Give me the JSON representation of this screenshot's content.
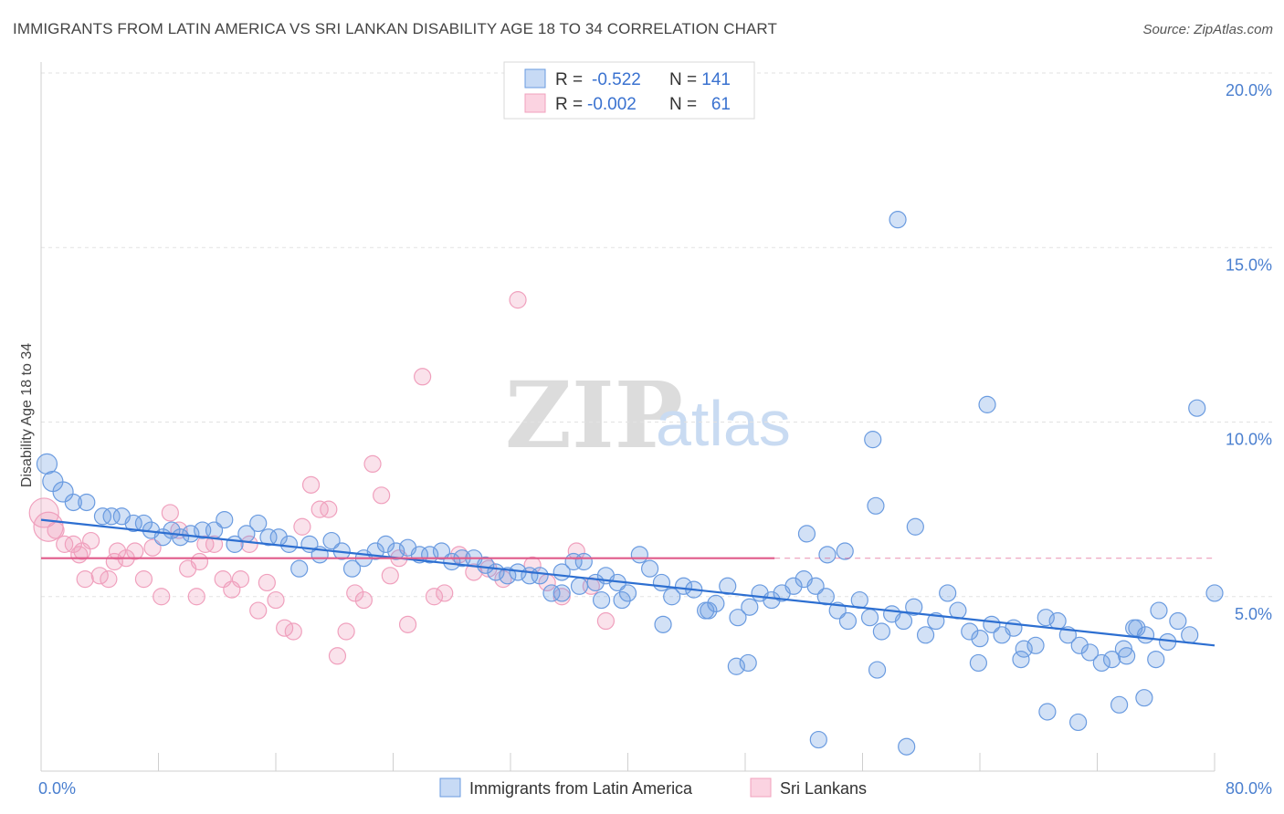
{
  "title": "IMMIGRANTS FROM LATIN AMERICA VS SRI LANKAN DISABILITY AGE 18 TO 34 CORRELATION CHART",
  "source": "Source: ZipAtlas.com",
  "watermark": {
    "zip": "ZIP",
    "atlas": "atlas"
  },
  "colors": {
    "blue": "#6a9be0",
    "blue_line": "#2d6fd1",
    "pink": "#f0a0bd",
    "pink_line": "#e05a8a"
  },
  "legend": {
    "r_label": "R =",
    "n_label": "N =",
    "blue": {
      "r": "-0.522",
      "n": "141"
    },
    "pink": {
      "r": "-0.002",
      "n": "61"
    }
  },
  "bottom_legend": {
    "blue": "Immigrants from Latin America",
    "pink": "Sri Lankans"
  },
  "chart_data": {
    "type": "scatter",
    "title": "IMMIGRANTS FROM LATIN AMERICA VS SRI LANKAN DISABILITY AGE 18 TO 34 CORRELATION CHART",
    "xlabel": "",
    "ylabel": "Disability Age 18 to 34",
    "xlim": [
      0,
      80
    ],
    "ylim": [
      0,
      20
    ],
    "y_ticks": [
      {
        "v": 5,
        "label": "5.0%"
      },
      {
        "v": 10,
        "label": "10.0%"
      },
      {
        "v": 15,
        "label": "15.0%"
      },
      {
        "v": 20,
        "label": "20.0%"
      }
    ],
    "x_ticks": [
      {
        "v": 0,
        "label": "0.0%"
      },
      {
        "v": 80,
        "label": "80.0%"
      }
    ],
    "series": [
      {
        "name": "Immigrants from Latin America",
        "color": "#6a9be0",
        "trend": {
          "x": [
            0,
            80
          ],
          "y": [
            7.2,
            3.6
          ]
        },
        "points": [
          [
            0.4,
            8.8
          ],
          [
            0.8,
            8.3
          ],
          [
            1.5,
            8.0
          ],
          [
            2.2,
            7.7
          ],
          [
            3.1,
            7.7
          ],
          [
            4.2,
            7.3
          ],
          [
            4.8,
            7.3
          ],
          [
            5.5,
            7.3
          ],
          [
            6.3,
            7.1
          ],
          [
            7.0,
            7.1
          ],
          [
            7.5,
            6.9
          ],
          [
            8.3,
            6.7
          ],
          [
            8.9,
            6.9
          ],
          [
            9.5,
            6.7
          ],
          [
            10.2,
            6.8
          ],
          [
            11.0,
            6.9
          ],
          [
            11.8,
            6.9
          ],
          [
            12.5,
            7.2
          ],
          [
            13.2,
            6.5
          ],
          [
            14.0,
            6.8
          ],
          [
            14.8,
            7.1
          ],
          [
            15.5,
            6.7
          ],
          [
            16.2,
            6.7
          ],
          [
            16.9,
            6.5
          ],
          [
            17.6,
            5.8
          ],
          [
            18.3,
            6.5
          ],
          [
            19.0,
            6.2
          ],
          [
            19.8,
            6.6
          ],
          [
            20.5,
            6.3
          ],
          [
            21.2,
            5.8
          ],
          [
            22.0,
            6.1
          ],
          [
            22.8,
            6.3
          ],
          [
            23.5,
            6.5
          ],
          [
            24.2,
            6.3
          ],
          [
            25.0,
            6.4
          ],
          [
            25.8,
            6.2
          ],
          [
            26.5,
            6.2
          ],
          [
            27.3,
            6.3
          ],
          [
            28.0,
            6.0
          ],
          [
            28.7,
            6.1
          ],
          [
            29.5,
            6.1
          ],
          [
            30.3,
            5.9
          ],
          [
            31.0,
            5.7
          ],
          [
            31.8,
            5.6
          ],
          [
            32.5,
            5.7
          ],
          [
            33.3,
            5.6
          ],
          [
            34.0,
            5.6
          ],
          [
            34.8,
            5.1
          ],
          [
            35.5,
            5.7
          ],
          [
            36.3,
            6.0
          ],
          [
            37.0,
            6.0
          ],
          [
            37.8,
            5.4
          ],
          [
            38.5,
            5.6
          ],
          [
            39.3,
            5.4
          ],
          [
            40.0,
            5.1
          ],
          [
            40.8,
            6.2
          ],
          [
            41.5,
            5.8
          ],
          [
            42.3,
            5.4
          ],
          [
            43.0,
            5.0
          ],
          [
            43.8,
            5.3
          ],
          [
            44.5,
            5.2
          ],
          [
            45.3,
            4.6
          ],
          [
            46.0,
            4.8
          ],
          [
            46.8,
            5.3
          ],
          [
            47.5,
            4.4
          ],
          [
            48.3,
            4.7
          ],
          [
            49.0,
            5.1
          ],
          [
            49.8,
            4.9
          ],
          [
            50.5,
            5.1
          ],
          [
            51.3,
            5.3
          ],
          [
            52.0,
            5.5
          ],
          [
            52.8,
            5.3
          ],
          [
            53.5,
            5.0
          ],
          [
            54.3,
            4.6
          ],
          [
            55.0,
            4.3
          ],
          [
            55.8,
            4.9
          ],
          [
            56.5,
            4.4
          ],
          [
            57.3,
            4.0
          ],
          [
            58.0,
            4.5
          ],
          [
            58.8,
            4.3
          ],
          [
            59.5,
            4.7
          ],
          [
            60.3,
            3.9
          ],
          [
            61.0,
            4.3
          ],
          [
            61.8,
            5.1
          ],
          [
            62.5,
            4.6
          ],
          [
            63.3,
            4.0
          ],
          [
            64.0,
            3.8
          ],
          [
            64.8,
            4.2
          ],
          [
            65.5,
            3.9
          ],
          [
            66.3,
            4.1
          ],
          [
            67.0,
            3.5
          ],
          [
            67.8,
            3.6
          ],
          [
            68.5,
            4.4
          ],
          [
            69.3,
            4.3
          ],
          [
            70.0,
            3.9
          ],
          [
            70.8,
            3.6
          ],
          [
            71.5,
            3.4
          ],
          [
            72.3,
            3.1
          ],
          [
            73.0,
            3.2
          ],
          [
            73.8,
            3.5
          ],
          [
            74.5,
            4.1
          ],
          [
            75.3,
            3.9
          ],
          [
            76.0,
            3.2
          ],
          [
            76.8,
            3.7
          ],
          [
            77.5,
            4.3
          ],
          [
            78.3,
            3.9
          ],
          [
            47.4,
            3.0
          ],
          [
            48.2,
            3.1
          ],
          [
            52.2,
            6.8
          ],
          [
            53.6,
            6.2
          ],
          [
            54.8,
            6.3
          ],
          [
            56.7,
            9.5
          ],
          [
            56.9,
            7.6
          ],
          [
            58.4,
            15.8
          ],
          [
            59.6,
            7.0
          ],
          [
            64.5,
            10.5
          ],
          [
            63.9,
            3.1
          ],
          [
            66.8,
            3.2
          ],
          [
            68.6,
            1.7
          ],
          [
            70.7,
            1.4
          ],
          [
            73.5,
            1.9
          ],
          [
            74.0,
            3.3
          ],
          [
            74.7,
            4.1
          ],
          [
            75.2,
            2.1
          ],
          [
            76.2,
            4.6
          ],
          [
            78.8,
            10.4
          ],
          [
            80.0,
            5.1
          ],
          [
            59.0,
            0.7
          ],
          [
            57.0,
            2.9
          ],
          [
            53.0,
            0.9
          ],
          [
            35.5,
            5.1
          ],
          [
            36.7,
            5.3
          ],
          [
            38.2,
            4.9
          ],
          [
            39.6,
            4.9
          ],
          [
            42.4,
            4.2
          ],
          [
            45.5,
            4.6
          ]
        ]
      },
      {
        "name": "Sri Lankans",
        "color": "#f0a0bd",
        "trend": {
          "x": [
            0,
            50
          ],
          "y": [
            6.1,
            6.1
          ]
        },
        "points": [
          [
            0.2,
            7.4
          ],
          [
            0.5,
            7.0
          ],
          [
            1.0,
            6.9
          ],
          [
            1.6,
            6.5
          ],
          [
            2.2,
            6.5
          ],
          [
            2.8,
            6.3
          ],
          [
            3.4,
            6.6
          ],
          [
            4.0,
            5.6
          ],
          [
            4.6,
            5.5
          ],
          [
            5.2,
            6.3
          ],
          [
            5.8,
            6.1
          ],
          [
            6.4,
            6.3
          ],
          [
            7.0,
            5.5
          ],
          [
            7.6,
            6.4
          ],
          [
            8.2,
            5.0
          ],
          [
            8.8,
            7.4
          ],
          [
            9.4,
            6.9
          ],
          [
            10.0,
            5.8
          ],
          [
            10.6,
            5.0
          ],
          [
            11.2,
            6.5
          ],
          [
            11.8,
            6.5
          ],
          [
            12.4,
            5.5
          ],
          [
            13.0,
            5.2
          ],
          [
            13.6,
            5.5
          ],
          [
            14.2,
            6.5
          ],
          [
            14.8,
            4.6
          ],
          [
            15.4,
            5.4
          ],
          [
            16.0,
            4.9
          ],
          [
            16.6,
            4.1
          ],
          [
            17.2,
            4.0
          ],
          [
            17.8,
            7.0
          ],
          [
            18.4,
            8.2
          ],
          [
            19.0,
            7.5
          ],
          [
            19.6,
            7.5
          ],
          [
            20.2,
            3.3
          ],
          [
            20.8,
            4.0
          ],
          [
            21.4,
            5.1
          ],
          [
            22.0,
            4.9
          ],
          [
            22.6,
            8.8
          ],
          [
            23.2,
            7.9
          ],
          [
            23.8,
            5.6
          ],
          [
            24.4,
            6.1
          ],
          [
            25.0,
            4.2
          ],
          [
            26.0,
            11.3
          ],
          [
            26.8,
            5.0
          ],
          [
            27.5,
            5.1
          ],
          [
            28.5,
            6.2
          ],
          [
            29.5,
            5.7
          ],
          [
            30.5,
            5.8
          ],
          [
            31.5,
            5.5
          ],
          [
            32.5,
            13.5
          ],
          [
            33.5,
            5.9
          ],
          [
            34.5,
            5.4
          ],
          [
            35.5,
            5.0
          ],
          [
            36.5,
            6.3
          ],
          [
            37.5,
            5.3
          ],
          [
            38.5,
            4.3
          ],
          [
            2.6,
            6.2
          ],
          [
            3.0,
            5.5
          ],
          [
            5.0,
            6.0
          ],
          [
            10.8,
            6.0
          ]
        ]
      }
    ]
  }
}
